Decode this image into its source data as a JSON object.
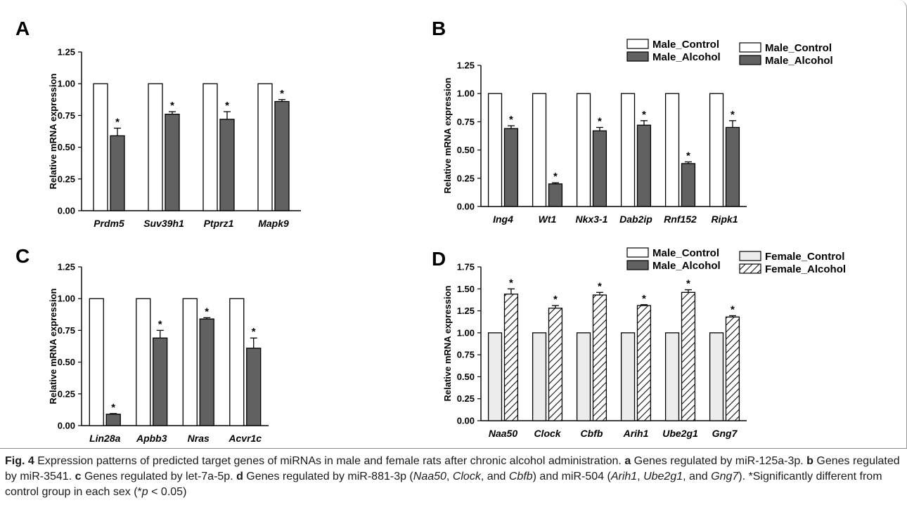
{
  "caption": {
    "fig_label": "Fig. 4",
    "text_main": " Expression patterns of predicted target genes of miRNAs in male and female rats after chronic alcohol administration. ",
    "a_label": "a",
    "a_text": " Genes regulated by miR-125a-3p. ",
    "b_label": "b",
    "b_text": " Genes regulated by miR-3541. ",
    "c_label": "c",
    "c_text": " Genes regulated by let-7a-5p. ",
    "d_label": "d",
    "d_text_1": " Genes regulated by miR-881-3p (",
    "d_gene_1": "Naa50",
    "d_sep_1": ", ",
    "d_gene_2": "Clock",
    "d_sep_2": ", and ",
    "d_gene_3": "Cbfb",
    "d_text_2": ") and miR-504 (",
    "d_gene_4": "Arih1",
    "d_sep_3": ", ",
    "d_gene_5": "Ube2g1",
    "d_sep_4": ", and ",
    "d_gene_6": "Gng7",
    "d_text_3": "). *Significantly different from control group in each sex (*",
    "p_italic": "p",
    "p_text": " < 0.05)"
  },
  "chart_data": [
    {
      "panel": "A",
      "type": "bar",
      "ylabel": "Relative mRNA expression",
      "ylim": [
        0,
        1.25
      ],
      "yticks": [
        "0.00",
        "0.25",
        "0.50",
        "0.75",
        "1.00",
        "1.25"
      ],
      "categories": [
        "Prdm5",
        "Suv39h1",
        "Ptprz1",
        "Mapk9"
      ],
      "series": [
        {
          "name": "Male_Control",
          "values": [
            1.0,
            1.0,
            1.0,
            1.0
          ],
          "errors": [
            0,
            0,
            0,
            0
          ],
          "fill": "#ffffff",
          "pattern": "none"
        },
        {
          "name": "Male_Alcohol",
          "values": [
            0.59,
            0.76,
            0.72,
            0.86
          ],
          "errors": [
            0.06,
            0.02,
            0.06,
            0.015
          ],
          "fill": "#616161",
          "pattern": "none"
        }
      ],
      "significance": [
        "*",
        "*",
        "*",
        "*"
      ],
      "legend": "top-right"
    },
    {
      "panel": "B",
      "type": "bar",
      "ylabel": "Relative mRNA expression",
      "ylim": [
        0,
        1.25
      ],
      "yticks": [
        "0.00",
        "0.25",
        "0.50",
        "0.75",
        "1.00",
        "1.25"
      ],
      "categories": [
        "Ing4",
        "Wt1",
        "Nkx3-1",
        "Dab2ip",
        "Rnf152",
        "Ripk1"
      ],
      "series": [
        {
          "name": "Male_Control",
          "values": [
            1.0,
            1.0,
            1.0,
            1.0,
            1.0,
            1.0
          ],
          "errors": [
            0,
            0,
            0,
            0,
            0,
            0
          ],
          "fill": "#ffffff",
          "pattern": "none"
        },
        {
          "name": "Male_Alcohol",
          "values": [
            0.69,
            0.2,
            0.67,
            0.72,
            0.38,
            0.7
          ],
          "errors": [
            0.025,
            0.01,
            0.03,
            0.04,
            0.015,
            0.06
          ],
          "fill": "#616161",
          "pattern": "none"
        }
      ],
      "significance": [
        "*",
        "*",
        "*",
        "*",
        "*",
        "*"
      ],
      "legend": "top-right"
    },
    {
      "panel": "C",
      "type": "bar",
      "ylabel": "Relative mRNA expression",
      "ylim": [
        0,
        1.25
      ],
      "yticks": [
        "0.00",
        "0.25",
        "0.50",
        "0.75",
        "1.00",
        "1.25"
      ],
      "categories": [
        "Lin28a",
        "Apbb3",
        "Nras",
        "Acvr1c"
      ],
      "series": [
        {
          "name": "Male_Control",
          "values": [
            1.0,
            1.0,
            1.0,
            1.0
          ],
          "errors": [
            0,
            0,
            0,
            0
          ],
          "fill": "#ffffff",
          "pattern": "none"
        },
        {
          "name": "Male_Alcohol",
          "values": [
            0.09,
            0.69,
            0.84,
            0.61
          ],
          "errors": [
            0.005,
            0.06,
            0.01,
            0.08
          ],
          "fill": "#616161",
          "pattern": "none"
        }
      ],
      "significance": [
        "*",
        "*",
        "*",
        "*"
      ],
      "legend": "top-right"
    },
    {
      "panel": "D",
      "type": "bar",
      "ylabel": "Relative mRNA expression",
      "ylim": [
        0,
        1.75
      ],
      "yticks": [
        "0.00",
        "0.25",
        "0.50",
        "0.75",
        "1.00",
        "1.25",
        "1.50",
        "1.75"
      ],
      "categories": [
        "Naa50",
        "Clock",
        "Cbfb",
        "Arih1",
        "Ube2g1",
        "Gng7"
      ],
      "series": [
        {
          "name": "Female_Control",
          "values": [
            1.0,
            1.0,
            1.0,
            1.0,
            1.0,
            1.0
          ],
          "errors": [
            0,
            0,
            0,
            0,
            0,
            0
          ],
          "fill": "#ececec",
          "pattern": "none"
        },
        {
          "name": "Female_Alcohol",
          "values": [
            1.44,
            1.28,
            1.43,
            1.31,
            1.46,
            1.18
          ],
          "errors": [
            0.06,
            0.03,
            0.03,
            0.01,
            0.03,
            0.015
          ],
          "fill": "#ffffff",
          "pattern": "hatch"
        }
      ],
      "significance": [
        "*",
        "*",
        "*",
        "*",
        "*",
        "*"
      ],
      "legend": "top-right"
    }
  ]
}
